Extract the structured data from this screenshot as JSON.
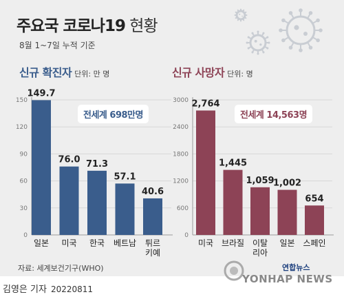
{
  "title": {
    "bold": "주요국 코로나19",
    "light": "현황"
  },
  "subtitle": "8월 1~7일 누적 기준",
  "source": "자료: 세계보건기구(WHO)",
  "byline": {
    "author": "김영은 기자",
    "date": "20220811"
  },
  "logo": {
    "brand": "연합뉴스",
    "wordmark": "YONHAP NEWS"
  },
  "colors": {
    "confirmed": "#3a5d8c",
    "deaths": "#8d4356",
    "background": "#eeeeee",
    "virus": "#c9cdd3"
  },
  "icons": [
    "virus-icon",
    "yonhap-logo-icon"
  ],
  "chart_data": [
    {
      "type": "bar",
      "title": "신규 확진자",
      "unit": "단위: 만 명",
      "total": "전세계 698만명",
      "categories": [
        "일본",
        "미국",
        "한국",
        "베트남",
        "튀르키예"
      ],
      "category_lines": [
        [
          "일본"
        ],
        [
          "미국"
        ],
        [
          "한국"
        ],
        [
          "베트남"
        ],
        [
          "튀르",
          "키예"
        ]
      ],
      "values": [
        149.7,
        76.0,
        71.3,
        57.1,
        40.6
      ],
      "value_labels": [
        "149.7",
        "76.0",
        "71.3",
        "57.1",
        "40.6"
      ],
      "ylim": [
        0,
        150
      ],
      "yticks": [
        "0",
        "30",
        "60",
        "90",
        "120",
        "150"
      ],
      "ytick_values": [
        0,
        30,
        60,
        90,
        120,
        150
      ],
      "color": "#3a5d8c"
    },
    {
      "type": "bar",
      "title": "신규 사망자",
      "unit": "단위: 명",
      "total": "전세계 14,563명",
      "categories": [
        "미국",
        "브라질",
        "이탈리아",
        "일본",
        "스페인"
      ],
      "category_lines": [
        [
          "미국"
        ],
        [
          "브라질"
        ],
        [
          "이탈",
          "리아"
        ],
        [
          "일본"
        ],
        [
          "스페인"
        ]
      ],
      "values": [
        2764,
        1445,
        1059,
        1002,
        654
      ],
      "value_labels": [
        "2,764",
        "1,445",
        "1,059",
        "1,002",
        "654"
      ],
      "ylim": [
        0,
        3000
      ],
      "yticks": [
        "0",
        "600",
        "1200",
        "1800",
        "2400",
        "3000"
      ],
      "ytick_values": [
        0,
        600,
        1200,
        1800,
        2400,
        3000
      ],
      "color": "#8d4356"
    }
  ]
}
